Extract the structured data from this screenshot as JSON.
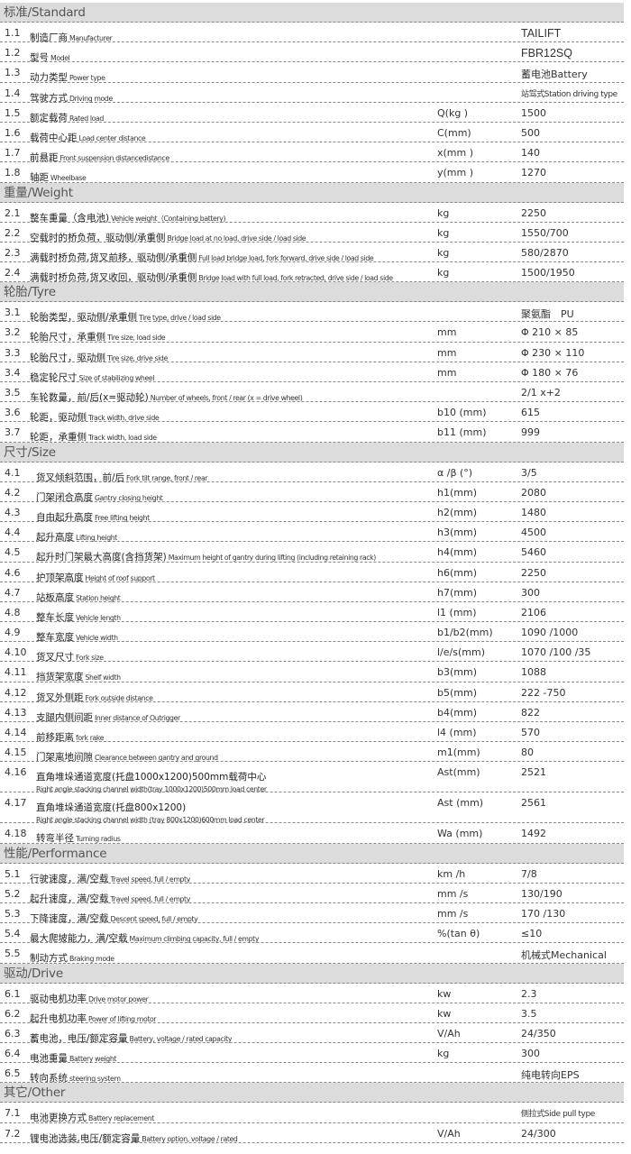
{
  "sections": [
    {
      "title": "标准/Standard",
      "rows": [
        {
          "num": "1.1",
          "cn": "制造厂商",
          "en": "Manufacturer",
          "unit": "",
          "value": "TAILIFT"
        },
        {
          "num": "1.2",
          "cn": "型号",
          "en": "Model",
          "unit": "",
          "value": "FBR12SQ"
        },
        {
          "num": "1.3",
          "cn": "动力类型",
          "en": "Power type",
          "unit": "",
          "value": "蓄电池Battery"
        },
        {
          "num": "1.4",
          "cn": "驾驶方式",
          "en": "Driving mode",
          "unit": "",
          "value": "站驾式Station driving type"
        },
        {
          "num": "1.5",
          "cn": "额定载荷",
          "en": "Rated load",
          "unit": "Q(kg )",
          "value": "1500"
        },
        {
          "num": "1.6",
          "cn": "载荷中心距",
          "en": "Load center distance",
          "unit": "C(mm)",
          "value": "500"
        },
        {
          "num": "1.7",
          "cn": "前悬距",
          "en": "Front suspension distancedistance",
          "unit": "x(mm )",
          "value": "140"
        },
        {
          "num": "1.8",
          "cn": "轴距",
          "en": "Wheelbase",
          "unit": "y(mm )",
          "value": "1270"
        }
      ]
    },
    {
      "title": "重量/Weight",
      "rows": [
        {
          "num": "2.1",
          "cn": "整车重量（含电池)",
          "en": "Vehicle weight（Containing battery)",
          "unit": "kg",
          "value": "2250"
        },
        {
          "num": "2.2",
          "cn": "空载时的桥负荷，驱动侧/承重侧",
          "en": "Bridge load at no load, drive side / load side",
          "unit": "kg",
          "value": "1550/700"
        },
        {
          "num": "2.3",
          "cn": "满载时桥负荷,货叉前移，驱动侧/承重侧",
          "en": "Full load bridge load, fork forward, drive side / load side",
          "unit": "kg",
          "value": "580/2870"
        },
        {
          "num": "2.4",
          "cn": "满载时桥负荷,货叉收回，驱动侧/承重侧",
          "en": "Bridge load with full load, fork retracted, drive side / load side",
          "unit": "kg",
          "value": "1500/1950"
        }
      ]
    },
    {
      "title": "轮胎/Tyre",
      "rows": [
        {
          "num": "3.1",
          "cn": "轮胎类型，驱动侧/承重侧",
          "en": "Tire type, drive / load side",
          "unit": "",
          "value": "聚氨酯　PU"
        },
        {
          "num": "3.2",
          "cn": "轮胎尺寸，承重侧",
          "en": "Tire size, load side",
          "unit": "mm",
          "value": "Φ 210 × 85"
        },
        {
          "num": "3.3",
          "cn": "轮胎尺寸，驱动侧",
          "en": "Tire size, drive side",
          "unit": "mm",
          "value": "Φ 230 × 110"
        },
        {
          "num": "3.4",
          "cn": "稳定轮尺寸",
          "en": "Size of stabilizing wheel",
          "unit": "mm",
          "value": "Φ 180 × 76"
        },
        {
          "num": "3.5",
          "cn": "车轮数量，前/后(x=驱动轮)",
          "en": "Number of wheels, front / rear (x = drive wheel)",
          "unit": "",
          "value": "2/1 x+2"
        },
        {
          "num": "3.6",
          "cn": "轮距，驱动侧",
          "en": "Track width, drive side",
          "unit": "b10 (mm)",
          "value": "615"
        },
        {
          "num": "3.7",
          "cn": "轮距，承重侧",
          "en": "Track width, load side",
          "unit": "b11 (mm)",
          "value": "999"
        }
      ]
    },
    {
      "title": "尺寸/Size",
      "rows": [
        {
          "num": "4.1",
          "cn": "货叉倾斜范围，前/后",
          "en": "Fork tilt range, front / rear",
          "unit": "α /β (°)",
          "value": "3/5"
        },
        {
          "num": "4.2",
          "cn": "门架闭合高度",
          "en": "Gantry closing height",
          "unit": "h1(mm)",
          "value": "2080"
        },
        {
          "num": "4.3",
          "cn": "自由起升高度",
          "en": "Free lifting height",
          "unit": "h2(mm)",
          "value": "1480"
        },
        {
          "num": "4.4",
          "cn": "起升高度",
          "en": "Lifting height",
          "unit": "h3(mm)",
          "value": "4500"
        },
        {
          "num": "4.5",
          "cn": "起升时门架最大高度(含挡货架)",
          "en": "Maximum height of gantry during lifting (including retaining rack)",
          "unit": "h4(mm)",
          "value": "5460"
        },
        {
          "num": "4.6",
          "cn": "护顶架高度",
          "en": "Height of roof support",
          "unit": "h6(mm)",
          "value": "2250"
        },
        {
          "num": "4.7",
          "cn": "站板高度",
          "en": "Station height",
          "unit": "h7(mm)",
          "value": "300"
        },
        {
          "num": "4.8",
          "cn": "整车长度",
          "en": "Vehicle length",
          "unit": "l1 (mm)",
          "value": "2106"
        },
        {
          "num": "4.9",
          "cn": "整车宽度",
          "en": "Vehicle width",
          "unit": "b1/b2(mm)",
          "value": "1090 /1000"
        },
        {
          "num": "4.10",
          "cn": "货叉尺寸",
          "en": "Fork size",
          "unit": "l/e/s(mm)",
          "value": "1070 /100 /35"
        },
        {
          "num": "4.11",
          "cn": "挡货架宽度",
          "en": "Shelf width",
          "unit": "b3(mm)",
          "value": "1088"
        },
        {
          "num": "4.12",
          "cn": "货叉外侧距",
          "en": "Fork outside distance",
          "unit": "b5(mm)",
          "value": "222 -750"
        },
        {
          "num": "4.13",
          "cn": "支腿内侧间距",
          "en": "Inner distance of Outrigger",
          "unit": "b4(mm)",
          "value": "822"
        },
        {
          "num": "4.14",
          "cn": "前移距离",
          "en": "fork rake",
          "unit": "l4 (mm)",
          "value": "570"
        },
        {
          "num": "4.15",
          "cn": "门架离地间隙",
          "en": "Clearance between gantry and ground",
          "unit": "m1(mm)",
          "value": "80"
        },
        {
          "num": "4.16",
          "cn": "直角堆垛通道宽度(托盘1000x1200)500mm载荷中心",
          "en": "Right angle stacking channel width(tray 1000x1200)500mm load center",
          "unit": "Ast(mm)",
          "value": "2521",
          "tall": true
        },
        {
          "num": "4.17",
          "cn": "直角堆垛通道宽度(托盘800x1200)",
          "en": "Right angle stacking channel width (tray 800x1200)600mm load center",
          "unit": "Ast (mm)",
          "value": "2561",
          "tall": true
        },
        {
          "num": "4.18",
          "cn": "转弯半径",
          "en": "Turning radius",
          "unit": "Wa (mm)",
          "value": "1492"
        }
      ]
    },
    {
      "title": "性能/Performance",
      "rows": [
        {
          "num": "5.1",
          "cn": "行驶速度，满/空载",
          "en": "Travel speed, full / empty",
          "unit": "km /h",
          "value": "7/8"
        },
        {
          "num": "5.2",
          "cn": "起升速度，满/空载",
          "en": "Travel speed, full / empty",
          "unit": "mm /s",
          "value": "130/190"
        },
        {
          "num": "5.3",
          "cn": "下降速度，满/空载",
          "en": "Descent speed, full / empty",
          "unit": "mm /s",
          "value": "170 /130"
        },
        {
          "num": "5.4",
          "cn": "最大爬坡能力，满/空载",
          "en": "Maximum climbing capacity, full / empty",
          "unit": "%(tan θ)",
          "value": "≤10"
        },
        {
          "num": "5.5",
          "cn": "制动方式",
          "en": "Braking mode",
          "unit": "",
          "value": "机械式Mechanical"
        }
      ]
    },
    {
      "title": "驱动/Drive",
      "rows": [
        {
          "num": "6.1",
          "cn": "驱动电机功率",
          "en": "Drive motor power",
          "unit": "kw",
          "value": "2.3"
        },
        {
          "num": "6.2",
          "cn": "起升电机功率",
          "en": "Power of lifting motor",
          "unit": "kw",
          "value": "3.5"
        },
        {
          "num": "6.3",
          "cn": "蓄电池，电压/额定容量",
          "en": "Battery, voltage / rated capacity",
          "unit": "V/Ah",
          "value": "24/350"
        },
        {
          "num": "6.4",
          "cn": "电池重量",
          "en": "Battery weight",
          "unit": "kg",
          "value": "300"
        },
        {
          "num": "6.5",
          "cn": "转向系统",
          "en": "steering system",
          "unit": "",
          "value": "纯电转向EPS"
        }
      ]
    },
    {
      "title": "其它/Other",
      "rows": [
        {
          "num": "7.1",
          "cn": "电池更换方式",
          "en": "Battery replacement",
          "unit": "",
          "value": "侧拉式Side pull type"
        },
        {
          "num": "7.2",
          "cn": "锂电池选装,电压/额定容量",
          "en": "Battery option, voltage / rated",
          "unit": "V/Ah",
          "value": "24/300"
        }
      ]
    }
  ]
}
